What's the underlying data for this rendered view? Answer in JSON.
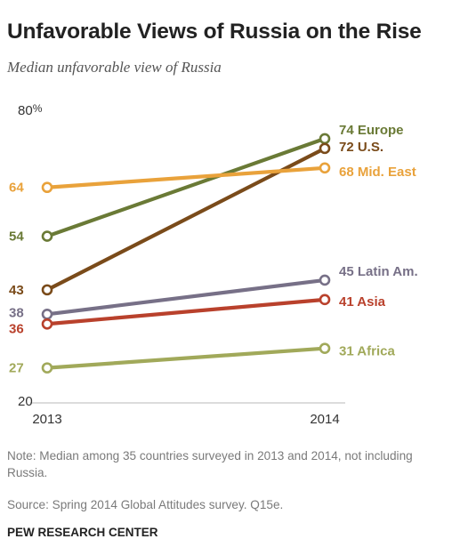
{
  "header": {
    "title": "Unfavorable Views of Russia on the Rise",
    "subtitle": "Median unfavorable view of Russia"
  },
  "chart_data": {
    "type": "line",
    "title": "Unfavorable Views of Russia on the Rise",
    "subtitle": "Median unfavorable view of Russia",
    "x": [
      "2013",
      "2014"
    ],
    "ylim": [
      20,
      80
    ],
    "y_tick_labels": [
      "20",
      "80"
    ],
    "y_unit": "%",
    "grid": false,
    "series": [
      {
        "name": "Europe",
        "values": [
          54,
          74
        ],
        "color": "#6a7a36",
        "start_label": "54",
        "end_label": "74 Europe"
      },
      {
        "name": "U.S.",
        "values": [
          43,
          72
        ],
        "color": "#7a4b1a",
        "start_label": "43",
        "end_label": "72 U.S."
      },
      {
        "name": "Mid. East",
        "values": [
          64,
          68
        ],
        "color": "#e9a23b",
        "start_label": "64",
        "end_label": "68 Mid. East"
      },
      {
        "name": "Latin Am.",
        "values": [
          38,
          45
        ],
        "color": "#777087",
        "start_label": "38",
        "end_label": "45 Latin Am."
      },
      {
        "name": "Asia",
        "values": [
          36,
          41
        ],
        "color": "#b9412c",
        "start_label": "36",
        "end_label": "41 Asia"
      },
      {
        "name": "Africa",
        "values": [
          27,
          31
        ],
        "color": "#a1a95a",
        "start_label": "27",
        "end_label": "31 Africa"
      }
    ]
  },
  "footer": {
    "note": "Note: Median among 35 countries surveyed in 2013 and 2014, not including Russia.",
    "source": "Source: Spring 2014 Global Attitudes survey. Q15e.",
    "brand": "PEW RESEARCH CENTER"
  }
}
